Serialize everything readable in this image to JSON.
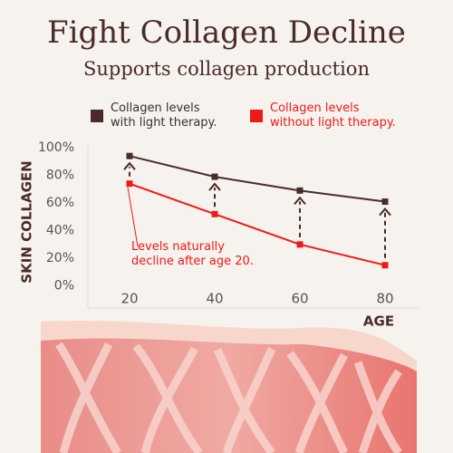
{
  "chart_data": {
    "type": "line",
    "title": "Fight Collagen Decline",
    "subtitle": "Supports collagen production",
    "x": [
      20,
      40,
      60,
      80
    ],
    "xlim": [
      10,
      90
    ],
    "xticks": [
      20,
      40,
      60,
      80
    ],
    "ylim": [
      -16,
      102
    ],
    "yticks": [
      {
        "value": 0,
        "label": "0%"
      },
      {
        "value": 20,
        "label": "20%"
      },
      {
        "value": 40,
        "label": "40%"
      },
      {
        "value": 60,
        "label": "60%"
      },
      {
        "value": 80,
        "label": "80%"
      },
      {
        "value": 100,
        "label": "100%"
      }
    ],
    "xlabel": "AGE",
    "ylabel": "SKIN COLLAGEN",
    "annotation": "Levels naturally\ndecline after age 20.",
    "series": [
      {
        "name": "Collagen levels\nwith light therapy.",
        "color": "#4a2a2c",
        "values": [
          94,
          79,
          69,
          61
        ]
      },
      {
        "name": "Collagen levels\nwithout light therapy.",
        "color": "#ee1a1a",
        "values": [
          74,
          52,
          30,
          15
        ]
      }
    ]
  }
}
